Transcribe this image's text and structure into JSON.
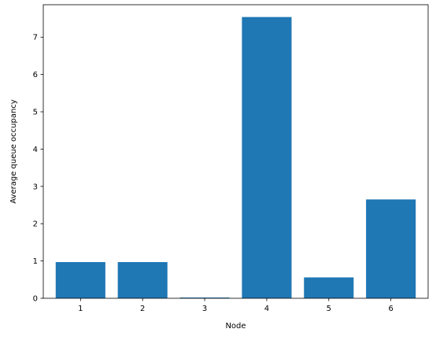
{
  "chart_data": {
    "type": "bar",
    "title": "",
    "xlabel": "Node",
    "ylabel": "Average queue occupancy",
    "categories": [
      "1",
      "2",
      "3",
      "4",
      "5",
      "6"
    ],
    "values": [
      0.97,
      0.97,
      0.02,
      7.54,
      0.56,
      2.65
    ],
    "ylim": [
      0,
      7.87
    ],
    "yticks": [
      0,
      1,
      2,
      3,
      4,
      5,
      6,
      7
    ],
    "bar_color": "#1f77b4",
    "grid": false,
    "legend": "none"
  }
}
